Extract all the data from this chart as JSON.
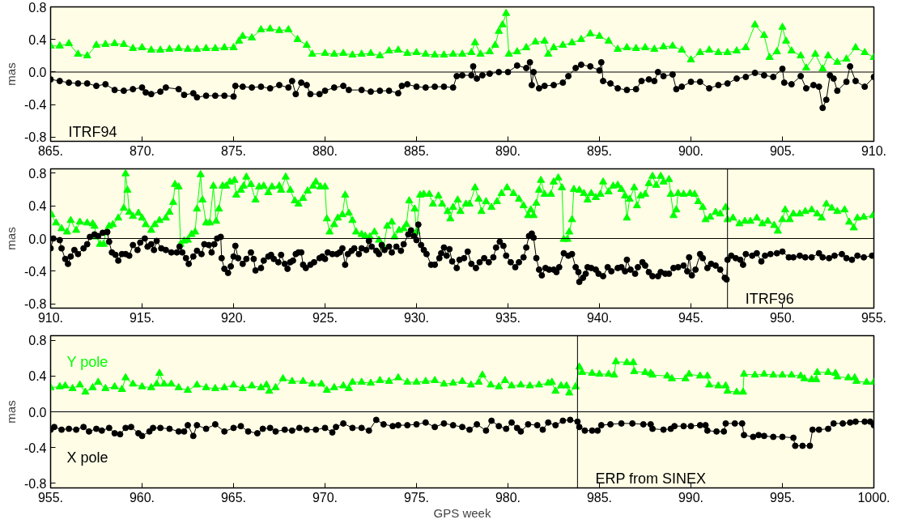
{
  "chart_data": [
    {
      "type": "line",
      "ylabel": "mas",
      "xlim": [
        865,
        910
      ],
      "ylim": [
        -0.85,
        0.8
      ],
      "xticks": [
        {
          "value": 865,
          "label": "865."
        },
        {
          "value": 870,
          "label": "870."
        },
        {
          "value": 875,
          "label": "875."
        },
        {
          "value": 880,
          "label": "880."
        },
        {
          "value": 885,
          "label": "885."
        },
        {
          "value": 890,
          "label": "890."
        },
        {
          "value": 895,
          "label": "895."
        },
        {
          "value": 900,
          "label": "900."
        },
        {
          "value": 905,
          "label": "905."
        },
        {
          "value": 910,
          "label": "910."
        }
      ],
      "yticks": [
        {
          "value": -0.8,
          "label": "-0.8"
        },
        {
          "value": -0.4,
          "label": "-0.4"
        },
        {
          "value": 0,
          "label": "0.0"
        },
        {
          "value": 0.4,
          "label": "0.4"
        },
        {
          "value": 0.8,
          "label": "0.8"
        }
      ],
      "ref_lines": [
        {
          "axis": "y",
          "value": 0,
          "color": "#000000"
        }
      ],
      "annotations": [
        "ITRF94"
      ],
      "series": [
        {
          "color": "#00ff00",
          "marker": "triangle",
          "x": [
            865,
            865.5,
            866,
            866.5,
            867,
            867.5,
            868,
            868.5,
            869,
            869.5,
            870,
            870.5,
            871,
            871.5,
            872,
            872.5,
            873,
            873.5,
            874,
            874.5,
            875,
            875.3,
            875.5,
            876,
            876.5,
            877,
            877.5,
            878,
            878.5,
            879,
            879.3,
            880,
            880.5,
            881,
            881.5,
            882,
            882.5,
            883,
            883.5,
            884,
            884.5,
            885,
            885.5,
            886,
            886.5,
            887,
            887.5,
            888,
            888.2,
            888.5,
            889,
            889.3,
            889.5,
            889.7,
            889.9,
            890.05,
            890.5,
            891,
            891.5,
            892,
            892.2,
            892.5,
            893,
            893.5,
            894,
            894.5,
            895,
            895.5,
            896,
            896.5,
            897,
            897.5,
            898,
            898.5,
            899,
            899.5,
            900,
            900.5,
            901,
            901.5,
            902,
            902.5,
            903,
            903.5,
            904,
            904.3,
            904.7,
            905,
            905.2,
            905.5,
            906,
            906.3,
            906.8,
            907.2,
            907.5,
            908,
            908.5,
            909,
            909.5,
            910
          ],
          "values": [
            0.32,
            0.32,
            0.35,
            0.22,
            0.2,
            0.33,
            0.34,
            0.35,
            0.34,
            0.29,
            0.3,
            0.27,
            0.27,
            0.28,
            0.29,
            0.28,
            0.28,
            0.29,
            0.29,
            0.3,
            0.3,
            0.38,
            0.44,
            0.42,
            0.52,
            0.53,
            0.51,
            0.52,
            0.4,
            0.33,
            0.22,
            0.23,
            0.22,
            0.23,
            0.21,
            0.22,
            0.23,
            0.2,
            0.26,
            0.27,
            0.23,
            0.24,
            0.22,
            0.21,
            0.21,
            0.22,
            0.22,
            0.24,
            0.36,
            0.22,
            0.25,
            0.33,
            0.5,
            0.58,
            0.72,
            0.22,
            0.25,
            0.3,
            0.37,
            0.38,
            0.22,
            0.3,
            0.33,
            0.36,
            0.4,
            0.47,
            0.44,
            0.38,
            0.28,
            0.3,
            0.29,
            0.3,
            0.28,
            0.31,
            0.32,
            0.27,
            0.15,
            0.24,
            0.27,
            0.24,
            0.24,
            0.26,
            0.3,
            0.58,
            0.45,
            0.18,
            0.25,
            0.55,
            0.38,
            0.26,
            0.2,
            0.05,
            0.22,
            0.04,
            0.2,
            0.12,
            0.16,
            0.3,
            0.24,
            0.18
          ]
        },
        {
          "color": "#000000",
          "marker": "circle",
          "x": [
            865,
            865.5,
            866,
            866.5,
            867,
            867.5,
            868,
            868.5,
            869,
            869.5,
            870,
            870.2,
            870.5,
            871,
            871.3,
            872,
            872.3,
            872.8,
            873,
            873.5,
            874,
            874.5,
            875,
            875.1,
            875.5,
            876,
            876.5,
            877,
            877.5,
            878,
            878.2,
            878.4,
            878.7,
            879,
            879.2,
            879.7,
            880,
            880.5,
            881,
            881.3,
            882,
            882.5,
            883,
            883.5,
            884,
            884.2,
            884.5,
            885,
            885.5,
            886,
            886.5,
            887,
            887.2,
            887.5,
            888,
            888.1,
            888.3,
            888.6,
            889,
            889.5,
            890,
            890.5,
            891,
            891.2,
            891.3,
            891.4,
            891.7,
            892,
            892.5,
            893,
            893.3,
            893.7,
            894,
            894.5,
            895,
            895.1,
            895.2,
            895.6,
            896,
            896.5,
            897,
            897.3,
            897.7,
            898,
            898.2,
            898.5,
            899,
            899.2,
            899.5,
            900,
            900.5,
            901,
            901.5,
            902,
            902.5,
            903,
            903.5,
            904,
            904.5,
            905,
            905.1,
            905.5,
            906,
            906.3,
            906.7,
            907,
            907.2,
            907.4,
            907.6,
            907.8,
            908,
            908.5,
            908.7,
            909,
            909.5,
            910
          ],
          "values": [
            -0.09,
            -0.11,
            -0.13,
            -0.14,
            -0.14,
            -0.17,
            -0.15,
            -0.22,
            -0.23,
            -0.21,
            -0.19,
            -0.25,
            -0.27,
            -0.24,
            -0.19,
            -0.21,
            -0.28,
            -0.26,
            -0.31,
            -0.29,
            -0.29,
            -0.29,
            -0.3,
            -0.17,
            -0.18,
            -0.19,
            -0.18,
            -0.2,
            -0.16,
            -0.19,
            -0.11,
            -0.27,
            -0.13,
            -0.16,
            -0.27,
            -0.27,
            -0.23,
            -0.19,
            -0.17,
            -0.22,
            -0.22,
            -0.24,
            -0.23,
            -0.23,
            -0.26,
            -0.17,
            -0.15,
            -0.18,
            -0.19,
            -0.18,
            -0.18,
            -0.19,
            -0.05,
            -0.04,
            -0.04,
            0.07,
            -0.08,
            -0.04,
            -0.02,
            0,
            0,
            0.08,
            0.05,
            0.12,
            -0.16,
            0,
            -0.2,
            -0.17,
            -0.16,
            -0.13,
            -0.05,
            0.05,
            0.09,
            0.07,
            0.02,
            0.12,
            -0.11,
            -0.14,
            -0.2,
            -0.22,
            -0.21,
            -0.11,
            -0.09,
            -0.11,
            0,
            -0.05,
            -0.03,
            -0.21,
            -0.18,
            -0.12,
            -0.12,
            -0.2,
            -0.16,
            -0.14,
            -0.08,
            -0.06,
            -0.01,
            -0.04,
            -0.06,
            0.04,
            -0.13,
            -0.15,
            -0.05,
            -0.2,
            -0.16,
            -0.18,
            -0.44,
            -0.34,
            -0.04,
            -0.08,
            -0.23,
            -0.12,
            0.07,
            -0.11,
            -0.18,
            -0.06
          ]
        }
      ]
    },
    {
      "type": "line",
      "ylabel": "mas",
      "xlim": [
        910,
        955
      ],
      "ylim": [
        -0.85,
        0.85
      ],
      "xticks": [
        {
          "value": 910,
          "label": "910."
        },
        {
          "value": 915,
          "label": "915."
        },
        {
          "value": 920,
          "label": "920."
        },
        {
          "value": 925,
          "label": "925."
        },
        {
          "value": 930,
          "label": "930."
        },
        {
          "value": 935,
          "label": "935."
        },
        {
          "value": 940,
          "label": "940."
        },
        {
          "value": 945,
          "label": "945."
        },
        {
          "value": 950,
          "label": "950."
        },
        {
          "value": 955,
          "label": "955."
        }
      ],
      "yticks": [
        {
          "value": -0.8,
          "label": "-0.8"
        },
        {
          "value": -0.4,
          "label": "-0.4"
        },
        {
          "value": 0,
          "label": "0.0"
        },
        {
          "value": 0.4,
          "label": "0.4"
        },
        {
          "value": 0.8,
          "label": "0.8"
        }
      ],
      "ref_lines": [
        {
          "axis": "y",
          "value": 0,
          "color": "#000000"
        },
        {
          "axis": "x",
          "value": 947,
          "label": "ITRF96",
          "color": "#000000"
        }
      ],
      "series": [
        {
          "color": "#00ff00",
          "marker": "triangle",
          "x": [
            910.05,
            910.3,
            910.6,
            910.9,
            911.1,
            911.4,
            911.6,
            912.0,
            912.3,
            912.4,
            912.5,
            912.7,
            912.9,
            913.0,
            913.2,
            913.4,
            913.7,
            914.0,
            914.1,
            914.2,
            914.3,
            914.5,
            914.8,
            915.0,
            915.2,
            915.5,
            915.7,
            915.95,
            916.3,
            916.5,
            916.7,
            916.8,
            917.0,
            917.1,
            917.3,
            917.5,
            917.7,
            917.9,
            918.0,
            918.2,
            918.3,
            918.5,
            918.7,
            918.9,
            919.05,
            919.2,
            919.4,
            919.6,
            919.8,
            920.05,
            920.15,
            920.4,
            920.55,
            920.7,
            920.95,
            921.2,
            921.4,
            921.65,
            921.9,
            922.1,
            922.5,
            922.6,
            922.85,
            923.1,
            923.35,
            923.55,
            923.8,
            924.05,
            924.35,
            924.5,
            924.75,
            925.0,
            925.1,
            925.25,
            925.5,
            925.7,
            925.95,
            926.1,
            926.3,
            926.5,
            926.7,
            927.0,
            927.2,
            927.45,
            927.7,
            927.95,
            928.2,
            928.4,
            928.65,
            928.8,
            929.05,
            929.3,
            929.45,
            929.6,
            929.9,
            930.0,
            930.2,
            930.4,
            930.7,
            930.9,
            931.2,
            931.4,
            931.7,
            931.85,
            932.0,
            932.25,
            932.4,
            932.7,
            932.9,
            933.2,
            933.4,
            933.55,
            933.8,
            934.1,
            934.4,
            934.65,
            934.95,
            935.3,
            935.6,
            935.85,
            936.1,
            936.25,
            936.4,
            936.55,
            936.7,
            936.8,
            937.0,
            937.35,
            937.5,
            937.75,
            937.95,
            938.05,
            938.25,
            938.35,
            938.5,
            938.6,
            938.9,
            939.15,
            939.35,
            939.55,
            939.8,
            940.05,
            940.2,
            940.5,
            940.75,
            941.0,
            941.2,
            941.4,
            941.5,
            941.65,
            941.9,
            942.05,
            942.25,
            942.5,
            942.7,
            942.9,
            943.1,
            943.35,
            943.5,
            943.8,
            943.9,
            944.05,
            944.2,
            944.3,
            944.6,
            944.95,
            945.2,
            945.4,
            945.65,
            945.8,
            946.05,
            946.35,
            946.6,
            946.9,
            947.0,
            947.3,
            947.65,
            947.95,
            948.25,
            948.6,
            948.9,
            949.2,
            949.55,
            949.75,
            950.0,
            950.15,
            950.4,
            950.6,
            950.95,
            951.25,
            951.6,
            951.9,
            952.15,
            952.4,
            952.7,
            953.0,
            953.4,
            953.65,
            953.9,
            954.1,
            954.45,
            954.95
          ],
          "values": [
            0.29,
            0.19,
            0.12,
            0.08,
            0.22,
            0.1,
            0.2,
            0.19,
            0.18,
            0.15,
            0.02,
            -0.07,
            -0.07,
            0.07,
            0.15,
            0.17,
            0.25,
            0.37,
            0.79,
            0.59,
            0.32,
            0.27,
            0.31,
            0.25,
            0.17,
            0.1,
            0.17,
            0.22,
            0.25,
            0.32,
            0.44,
            0.66,
            0.63,
            -0.07,
            -0.03,
            -0.02,
            0.05,
            0.08,
            0.36,
            0.78,
            0.47,
            0.19,
            0.19,
            0.64,
            0.21,
            0.36,
            0.64,
            0.64,
            0.69,
            0.71,
            0.53,
            0.59,
            0.64,
            0.75,
            0.66,
            0.47,
            0.63,
            0.64,
            0.56,
            0.63,
            0.64,
            0.59,
            0.75,
            0.59,
            0.46,
            0.42,
            0.49,
            0.58,
            0.64,
            0.69,
            0.63,
            0.63,
            0.24,
            0.08,
            0.17,
            0.25,
            0.29,
            0.53,
            0.31,
            0.22,
            0.08,
            0.05,
            0.03,
            0.02,
            0.08,
            -0.02,
            -0.1,
            0.15,
            0.2,
            0.02,
            0.1,
            0.12,
            0.17,
            0.46,
            0.36,
            0.08,
            0.53,
            0.54,
            0.54,
            0.42,
            0.52,
            0.42,
            0.33,
            0.24,
            0.38,
            0.47,
            0.33,
            0.42,
            0.42,
            0.62,
            0.48,
            0.33,
            0.45,
            0.38,
            0.45,
            0.55,
            0.62,
            0.55,
            0.48,
            0.4,
            0.28,
            0.35,
            0.28,
            0.43,
            0.59,
            0.71,
            0.54,
            0.54,
            0.69,
            0.74,
            0.62,
            -0.01,
            -0.01,
            0.08,
            0.23,
            0.6,
            0.59,
            0.55,
            0.47,
            0.55,
            0.5,
            0.54,
            0.69,
            0.57,
            0.64,
            0.65,
            0.6,
            0.52,
            0.25,
            0.48,
            0.62,
            0.4,
            0.52,
            0.54,
            0.67,
            0.76,
            0.65,
            0.76,
            0.69,
            0.72,
            0.54,
            0.28,
            0.35,
            0.55,
            0.54,
            0.55,
            0.54,
            0.45,
            0.38,
            0.23,
            0.26,
            0.32,
            0.3,
            0.38,
            0.23,
            0.25,
            0.18,
            0.21,
            0.21,
            0.25,
            0.18,
            0.21,
            0.16,
            0.09,
            0.23,
            0.35,
            0.23,
            0.3,
            0.3,
            0.33,
            0.35,
            0.3,
            0.25,
            0.42,
            0.37,
            0.33,
            0.35,
            0.2,
            0.13,
            0.25,
            0.26,
            0.28
          ]
        },
        {
          "color": "#000000",
          "marker": "circle",
          "x": [
            910.0,
            910.15,
            910.5,
            910.6,
            910.8,
            910.95,
            911.1,
            911.3,
            911.5,
            911.8,
            912.0,
            912.15,
            912.4,
            912.6,
            912.85,
            913.1,
            913.2,
            913.35,
            913.55,
            913.7,
            913.9,
            914.1,
            914.3,
            914.5,
            914.75,
            914.9,
            915.15,
            915.3,
            915.5,
            915.65,
            915.8,
            916.05,
            916.3,
            916.6,
            916.9,
            917.05,
            917.2,
            917.4,
            917.55,
            917.8,
            918.0,
            918.25,
            918.4,
            918.65,
            918.8,
            918.95,
            919.1,
            919.3,
            919.35,
            919.5,
            919.7,
            919.85,
            920.0,
            920.1,
            920.25,
            920.5,
            920.7,
            920.95,
            921.1,
            921.2,
            921.5,
            921.65,
            921.9,
            922.05,
            922.2,
            922.45,
            922.6,
            922.8,
            922.95,
            923.1,
            923.25,
            923.4,
            923.55,
            923.7,
            923.8,
            923.95,
            924.2,
            924.4,
            924.7,
            924.85,
            925.0,
            925.15,
            925.4,
            925.65,
            925.8,
            925.95,
            926.1,
            926.25,
            926.45,
            926.6,
            926.85,
            927.0,
            927.25,
            927.4,
            927.55,
            927.8,
            927.95,
            928.1,
            928.25,
            928.5,
            928.65,
            928.9,
            929.15,
            929.3,
            929.55,
            929.7,
            929.85,
            930.0,
            930.1,
            930.25,
            930.4,
            930.55,
            930.8,
            931.0,
            931.25,
            931.35,
            931.5,
            931.65,
            931.8,
            931.95,
            932.2,
            932.35,
            932.6,
            932.8,
            933.0,
            933.25,
            933.45,
            933.7,
            933.95,
            934.2,
            934.35,
            934.55,
            934.75,
            934.9,
            935.15,
            935.4,
            935.6,
            935.85,
            936.0,
            936.15,
            936.3,
            936.4,
            936.55,
            936.7,
            936.85,
            937.05,
            937.25,
            937.5,
            937.65,
            937.8,
            938.05,
            938.3,
            938.5,
            938.7,
            938.85,
            938.9,
            939.1,
            939.25,
            939.35,
            939.55,
            939.8,
            939.95,
            940.2,
            940.45,
            940.65,
            941.0,
            941.2,
            941.4,
            941.5,
            941.7,
            941.95,
            942.1,
            942.35,
            942.5,
            942.7,
            942.9,
            943.2,
            943.35,
            943.6,
            943.8,
            944.05,
            944.3,
            944.6,
            944.8,
            944.9,
            945.05,
            945.25,
            945.5,
            945.65,
            945.9,
            946.1,
            946.35,
            946.6,
            946.85,
            946.95,
            947.0,
            947.2,
            947.45,
            947.7,
            947.85,
            948.0,
            948.35,
            948.6,
            948.85,
            949.05,
            949.35,
            949.7,
            950.0,
            950.35,
            950.6,
            950.95,
            951.25,
            951.6,
            952.0,
            952.2,
            952.55,
            952.85,
            953.25,
            953.5,
            953.8,
            954.1,
            954.45,
            954.9
          ],
          "values": [
            -0.12,
            0,
            -0.02,
            -0.12,
            -0.25,
            -0.31,
            -0.22,
            -0.14,
            -0.19,
            -0.12,
            -0.07,
            0.02,
            0.05,
            0.03,
            0.07,
            0.08,
            -0.04,
            -0.17,
            -0.2,
            -0.27,
            -0.19,
            -0.19,
            -0.21,
            -0.08,
            -0.14,
            -0.05,
            0,
            -0.1,
            -0.07,
            -0.14,
            -0.03,
            -0.12,
            -0.14,
            -0.17,
            -0.17,
            -0.1,
            -0.17,
            -0.24,
            -0.31,
            -0.22,
            -0.15,
            -0.19,
            -0.07,
            -0.08,
            -0.17,
            -0.07,
            0,
            0.02,
            -0.24,
            -0.37,
            -0.42,
            -0.34,
            -0.22,
            -0.09,
            -0.24,
            -0.31,
            -0.25,
            -0.17,
            -0.25,
            -0.39,
            -0.36,
            -0.27,
            -0.22,
            -0.2,
            -0.25,
            -0.29,
            -0.2,
            -0.31,
            -0.37,
            -0.29,
            -0.27,
            -0.19,
            -0.17,
            -0.17,
            -0.32,
            -0.36,
            -0.32,
            -0.29,
            -0.24,
            -0.22,
            -0.25,
            -0.17,
            -0.19,
            -0.19,
            -0.17,
            -0.12,
            -0.32,
            -0.19,
            -0.15,
            -0.12,
            -0.19,
            -0.12,
            -0.14,
            -0.03,
            -0.1,
            -0.15,
            -0.19,
            -0.08,
            -0.14,
            -0.1,
            -0.17,
            -0.1,
            -0.15,
            -0.07,
            0.05,
            0.1,
            0.03,
            -0.02,
            0.17,
            -0.08,
            -0.14,
            -0.19,
            -0.32,
            -0.32,
            -0.24,
            -0.18,
            -0.11,
            -0.21,
            -0.13,
            -0.28,
            -0.36,
            -0.26,
            -0.24,
            -0.16,
            -0.31,
            -0.36,
            -0.29,
            -0.24,
            -0.29,
            -0.23,
            -0.11,
            -0.04,
            -0.09,
            -0.21,
            -0.29,
            -0.35,
            -0.29,
            -0.23,
            -0.11,
            0.03,
            0.06,
            0.01,
            -0.24,
            -0.38,
            -0.45,
            -0.36,
            -0.38,
            -0.38,
            -0.41,
            -0.35,
            -0.18,
            -0.21,
            -0.19,
            -0.35,
            -0.41,
            -0.53,
            -0.48,
            -0.43,
            -0.35,
            -0.36,
            -0.38,
            -0.43,
            -0.46,
            -0.35,
            -0.4,
            -0.36,
            -0.35,
            -0.4,
            -0.26,
            -0.38,
            -0.43,
            -0.35,
            -0.29,
            -0.33,
            -0.41,
            -0.46,
            -0.46,
            -0.41,
            -0.43,
            -0.43,
            -0.36,
            -0.35,
            -0.33,
            -0.4,
            -0.23,
            -0.45,
            -0.38,
            -0.19,
            -0.24,
            -0.36,
            -0.31,
            -0.33,
            -0.38,
            -0.48,
            -0.5,
            -0.26,
            -0.21,
            -0.24,
            -0.26,
            -0.32,
            -0.19,
            -0.21,
            -0.18,
            -0.28,
            -0.21,
            -0.19,
            -0.18,
            -0.16,
            -0.23,
            -0.23,
            -0.21,
            -0.23,
            -0.23,
            -0.18,
            -0.23,
            -0.24,
            -0.21,
            -0.19,
            -0.24,
            -0.26,
            -0.21,
            -0.23,
            -0.21
          ]
        }
      ]
    },
    {
      "type": "line",
      "ylabel": "mas",
      "xlabel": "GPS week",
      "xlim": [
        955,
        1000
      ],
      "ylim": [
        -0.85,
        0.85
      ],
      "xticks": [
        {
          "value": 955,
          "label": "955."
        },
        {
          "value": 960,
          "label": "960."
        },
        {
          "value": 965,
          "label": "965."
        },
        {
          "value": 970,
          "label": "970."
        },
        {
          "value": 975,
          "label": "975."
        },
        {
          "value": 980,
          "label": "980."
        },
        {
          "value": 985,
          "label": "985."
        },
        {
          "value": 990,
          "label": "990."
        },
        {
          "value": 995,
          "label": "995."
        },
        {
          "value": 1000,
          "label": "1000."
        }
      ],
      "yticks": [
        {
          "value": -0.8,
          "label": "-0.8"
        },
        {
          "value": -0.4,
          "label": "-0.4"
        },
        {
          "value": 0,
          "label": "0.0"
        },
        {
          "value": 0.4,
          "label": "0.4"
        },
        {
          "value": 0.8,
          "label": "0.8"
        }
      ],
      "ref_lines": [
        {
          "axis": "y",
          "value": 0,
          "color": "#000000"
        },
        {
          "axis": "x",
          "value": 983.8,
          "label": "ERP from SINEX",
          "color": "#000000"
        }
      ],
      "series": [
        {
          "name": "Y pole",
          "color": "#00ff00",
          "marker": "triangle",
          "x": [
            955,
            955.5,
            955.8,
            956.2,
            956.6,
            956.9,
            957.3,
            957.6,
            958,
            958.5,
            958.9,
            959.1,
            959.5,
            960,
            960.5,
            960.8,
            960.95,
            961.2,
            961.6,
            962,
            962.5,
            963,
            963.5,
            964,
            964.5,
            965,
            965.5,
            966,
            966.5,
            966.8,
            966.95,
            967.3,
            967.7,
            968.2,
            968.8,
            969.3,
            969.8,
            970.1,
            970.5,
            971,
            971.3,
            971.5,
            972,
            972.5,
            973,
            973.5,
            974,
            974.5,
            975,
            975.5,
            976,
            976.5,
            977,
            977.5,
            977.98,
            978.4,
            978.6,
            979.06,
            979.5,
            979.84,
            980.2,
            980.7,
            981.2,
            981.7,
            982.2,
            982.4,
            982.6,
            982.9,
            983.2,
            983.35,
            983.7,
            983.9,
            984.05,
            984.6,
            985,
            985.5,
            985.8,
            985.9,
            986.5,
            986.85,
            986.9,
            987.5,
            987.8,
            987.9,
            988.7,
            988.96,
            989.7,
            989.9,
            990.5,
            990.9,
            991.0,
            991.5,
            991.9,
            992.0,
            992.5,
            992.85,
            992.9,
            993.5,
            994,
            994.5,
            995,
            995.5,
            996,
            996.2,
            996.6,
            996.85,
            996.9,
            997.5,
            997.9,
            998,
            998.6,
            998.95,
            999.05,
            999.6,
            1000
          ],
          "values": [
            0.27,
            0.28,
            0.29,
            0.26,
            0.3,
            0.22,
            0.27,
            0.33,
            0.26,
            0.28,
            0.25,
            0.38,
            0.31,
            0.28,
            0.27,
            0.31,
            0.43,
            0.31,
            0.31,
            0.27,
            0.24,
            0.3,
            0.27,
            0.26,
            0.27,
            0.3,
            0.26,
            0.29,
            0.27,
            0.3,
            0.23,
            0.27,
            0.37,
            0.34,
            0.34,
            0.31,
            0.31,
            0.24,
            0.27,
            0.29,
            0.26,
            0.33,
            0.33,
            0.32,
            0.35,
            0.34,
            0.38,
            0.33,
            0.33,
            0.34,
            0.35,
            0.31,
            0.32,
            0.34,
            0.3,
            0.33,
            0.41,
            0.3,
            0.28,
            0.35,
            0.29,
            0.3,
            0.29,
            0.3,
            0.32,
            0.33,
            0.23,
            0.29,
            0.29,
            0.21,
            0.28,
            0.5,
            0.44,
            0.43,
            0.42,
            0.42,
            0.41,
            0.56,
            0.55,
            0.55,
            0.45,
            0.44,
            0.43,
            0.41,
            0.4,
            0.37,
            0.37,
            0.42,
            0.4,
            0.4,
            0.3,
            0.29,
            0.29,
            0.23,
            0.22,
            0.22,
            0.42,
            0.41,
            0.42,
            0.41,
            0.41,
            0.41,
            0.4,
            0.37,
            0.36,
            0.36,
            0.44,
            0.44,
            0.43,
            0.39,
            0.38,
            0.38,
            0.34,
            0.33,
            0.33
          ]
        },
        {
          "name": "X pole",
          "color": "#000000",
          "marker": "circle",
          "x": [
            955,
            955.2,
            955.6,
            956,
            956.4,
            956.8,
            957.1,
            957.5,
            957.8,
            958.2,
            958.5,
            958.8,
            959.1,
            959.4,
            959.8,
            960,
            960.4,
            960.6,
            961,
            961.5,
            962,
            962.3,
            962.5,
            962.8,
            963,
            963.5,
            964,
            964.5,
            965,
            965.4,
            965.8,
            966.3,
            966.6,
            967,
            967.3,
            967.8,
            968.2,
            968.6,
            969,
            969.5,
            970,
            970.4,
            970.6,
            971,
            971.5,
            972,
            972.4,
            972.8,
            973.2,
            973.7,
            974,
            974.5,
            975,
            975.5,
            976,
            976.5,
            977,
            977.5,
            977.9,
            978.3,
            978.8,
            979.1,
            979.5,
            979.9,
            980.2,
            980.5,
            980.7,
            981.1,
            981.6,
            981.9,
            982.2,
            982.6,
            983,
            983.4,
            983.8,
            983.9,
            984.2,
            984.6,
            984.9,
            985.1,
            985.6,
            986.2,
            986.8,
            987.4,
            987.8,
            987.9,
            988.5,
            988.9,
            989.1,
            989.6,
            990,
            990.5,
            990.8,
            990.9,
            991.4,
            991.8,
            991.9,
            992.4,
            992.8,
            992.9,
            993.4,
            993.7,
            994,
            994.5,
            995,
            995.6,
            995.7,
            996.1,
            996.5,
            996.65,
            997,
            997.5,
            997.8,
            998.3,
            998.7,
            999,
            999.5,
            999.8,
            1000
          ],
          "values": [
            -0.2,
            -0.17,
            -0.2,
            -0.19,
            -0.2,
            -0.17,
            -0.22,
            -0.19,
            -0.21,
            -0.18,
            -0.24,
            -0.25,
            -0.18,
            -0.17,
            -0.24,
            -0.27,
            -0.22,
            -0.18,
            -0.18,
            -0.19,
            -0.22,
            -0.22,
            -0.15,
            -0.27,
            -0.15,
            -0.19,
            -0.14,
            -0.22,
            -0.18,
            -0.16,
            -0.22,
            -0.24,
            -0.19,
            -0.18,
            -0.22,
            -0.2,
            -0.21,
            -0.18,
            -0.2,
            -0.2,
            -0.18,
            -0.23,
            -0.17,
            -0.13,
            -0.18,
            -0.18,
            -0.21,
            -0.09,
            -0.14,
            -0.16,
            -0.15,
            -0.15,
            -0.14,
            -0.12,
            -0.17,
            -0.13,
            -0.15,
            -0.17,
            -0.2,
            -0.14,
            -0.21,
            -0.1,
            -0.16,
            -0.19,
            -0.12,
            -0.18,
            -0.22,
            -0.14,
            -0.15,
            -0.2,
            -0.12,
            -0.15,
            -0.1,
            -0.09,
            -0.11,
            -0.17,
            -0.21,
            -0.21,
            -0.21,
            -0.15,
            -0.14,
            -0.13,
            -0.13,
            -0.14,
            -0.14,
            -0.19,
            -0.2,
            -0.19,
            -0.16,
            -0.16,
            -0.16,
            -0.15,
            -0.15,
            -0.21,
            -0.22,
            -0.22,
            -0.13,
            -0.13,
            -0.13,
            -0.26,
            -0.28,
            -0.26,
            -0.27,
            -0.28,
            -0.28,
            -0.29,
            -0.38,
            -0.38,
            -0.38,
            -0.2,
            -0.2,
            -0.19,
            -0.13,
            -0.13,
            -0.12,
            -0.11,
            -0.11,
            -0.11,
            -0.15
          ]
        }
      ]
    }
  ]
}
